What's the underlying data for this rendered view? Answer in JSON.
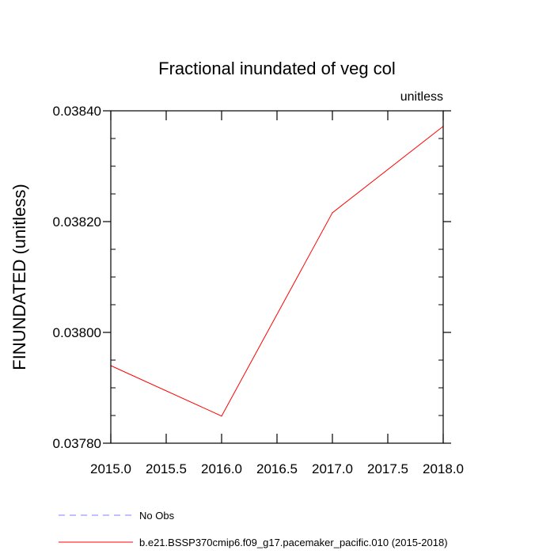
{
  "chart_data": {
    "type": "line",
    "title": "Fractional inundated of veg col",
    "units_label": "unitless",
    "ylabel": "FINUNDATED  (unitless)",
    "xlabel": "",
    "xlim": [
      2015.0,
      2018.0
    ],
    "ylim": [
      0.0378,
      0.0384
    ],
    "x_ticks": [
      2015.0,
      2015.5,
      2016.0,
      2016.5,
      2017.0,
      2017.5,
      2018.0
    ],
    "x_tick_labels": [
      "2015.0",
      "2015.5",
      "2016.0",
      "2016.5",
      "2017.0",
      "2017.5",
      "2018.0"
    ],
    "y_ticks": [
      0.0378,
      0.038,
      0.0382,
      0.0384
    ],
    "y_tick_labels": [
      "0.03780",
      "0.03800",
      "0.03820",
      "0.03840"
    ],
    "y_minor_step": 5e-05,
    "x_minor_step": 0.5,
    "grid": false,
    "legend_position": "bottom-left, below plot",
    "series": [
      {
        "name": "b.e21.BSSP370cmip6.f09_g17.pacemaker_pacific.010 (2015-2018)",
        "color": "#ff0000",
        "style": "solid",
        "x": [
          2015.0,
          2016.0,
          2017.0,
          2018.0
        ],
        "y": [
          0.03794,
          0.037849,
          0.038216,
          0.038372
        ]
      }
    ],
    "legend": [
      {
        "label": "No Obs",
        "color": "#8080ff",
        "style": "dashed"
      },
      {
        "label": "b.e21.BSSP370cmip6.f09_g17.pacemaker_pacific.010 (2015-2018)",
        "color": "#ff0000",
        "style": "solid"
      }
    ]
  }
}
